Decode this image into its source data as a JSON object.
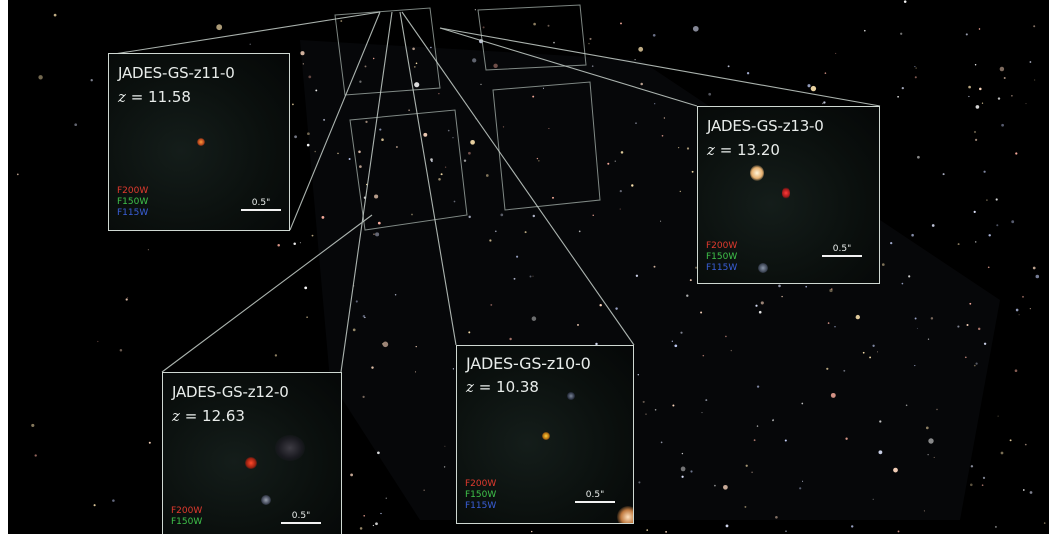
{
  "panels": {
    "z11": {
      "name": "JADES-GS-z11-0",
      "redshift_var": "z",
      "redshift_value": "= 11.58",
      "filters": {
        "red": "F200W",
        "green": "F150W",
        "blue": "F115W"
      },
      "scale": "0.5\""
    },
    "z13": {
      "name": "JADES-GS-z13-0",
      "redshift_var": "z",
      "redshift_value": "= 13.20",
      "filters": {
        "red": "F200W",
        "green": "F150W",
        "blue": "F115W"
      },
      "scale": "0.5\""
    },
    "z12": {
      "name": "JADES-GS-z12-0",
      "redshift_var": "z",
      "redshift_value": "= 12.63",
      "filters": {
        "red": "F200W",
        "green": "F150W"
      },
      "scale": "0.5\""
    },
    "z10": {
      "name": "JADES-GS-z10-0",
      "redshift_var": "z",
      "redshift_value": "= 10.38",
      "filters": {
        "red": "F200W",
        "green": "F150W",
        "blue": "F115W"
      },
      "scale": "0.5\""
    }
  },
  "colors": {
    "background": "#000000",
    "frame": "#cfd8d2",
    "filter_red": "#e03a2e",
    "filter_green": "#3fc24a",
    "filter_blue": "#3a5fd9"
  }
}
